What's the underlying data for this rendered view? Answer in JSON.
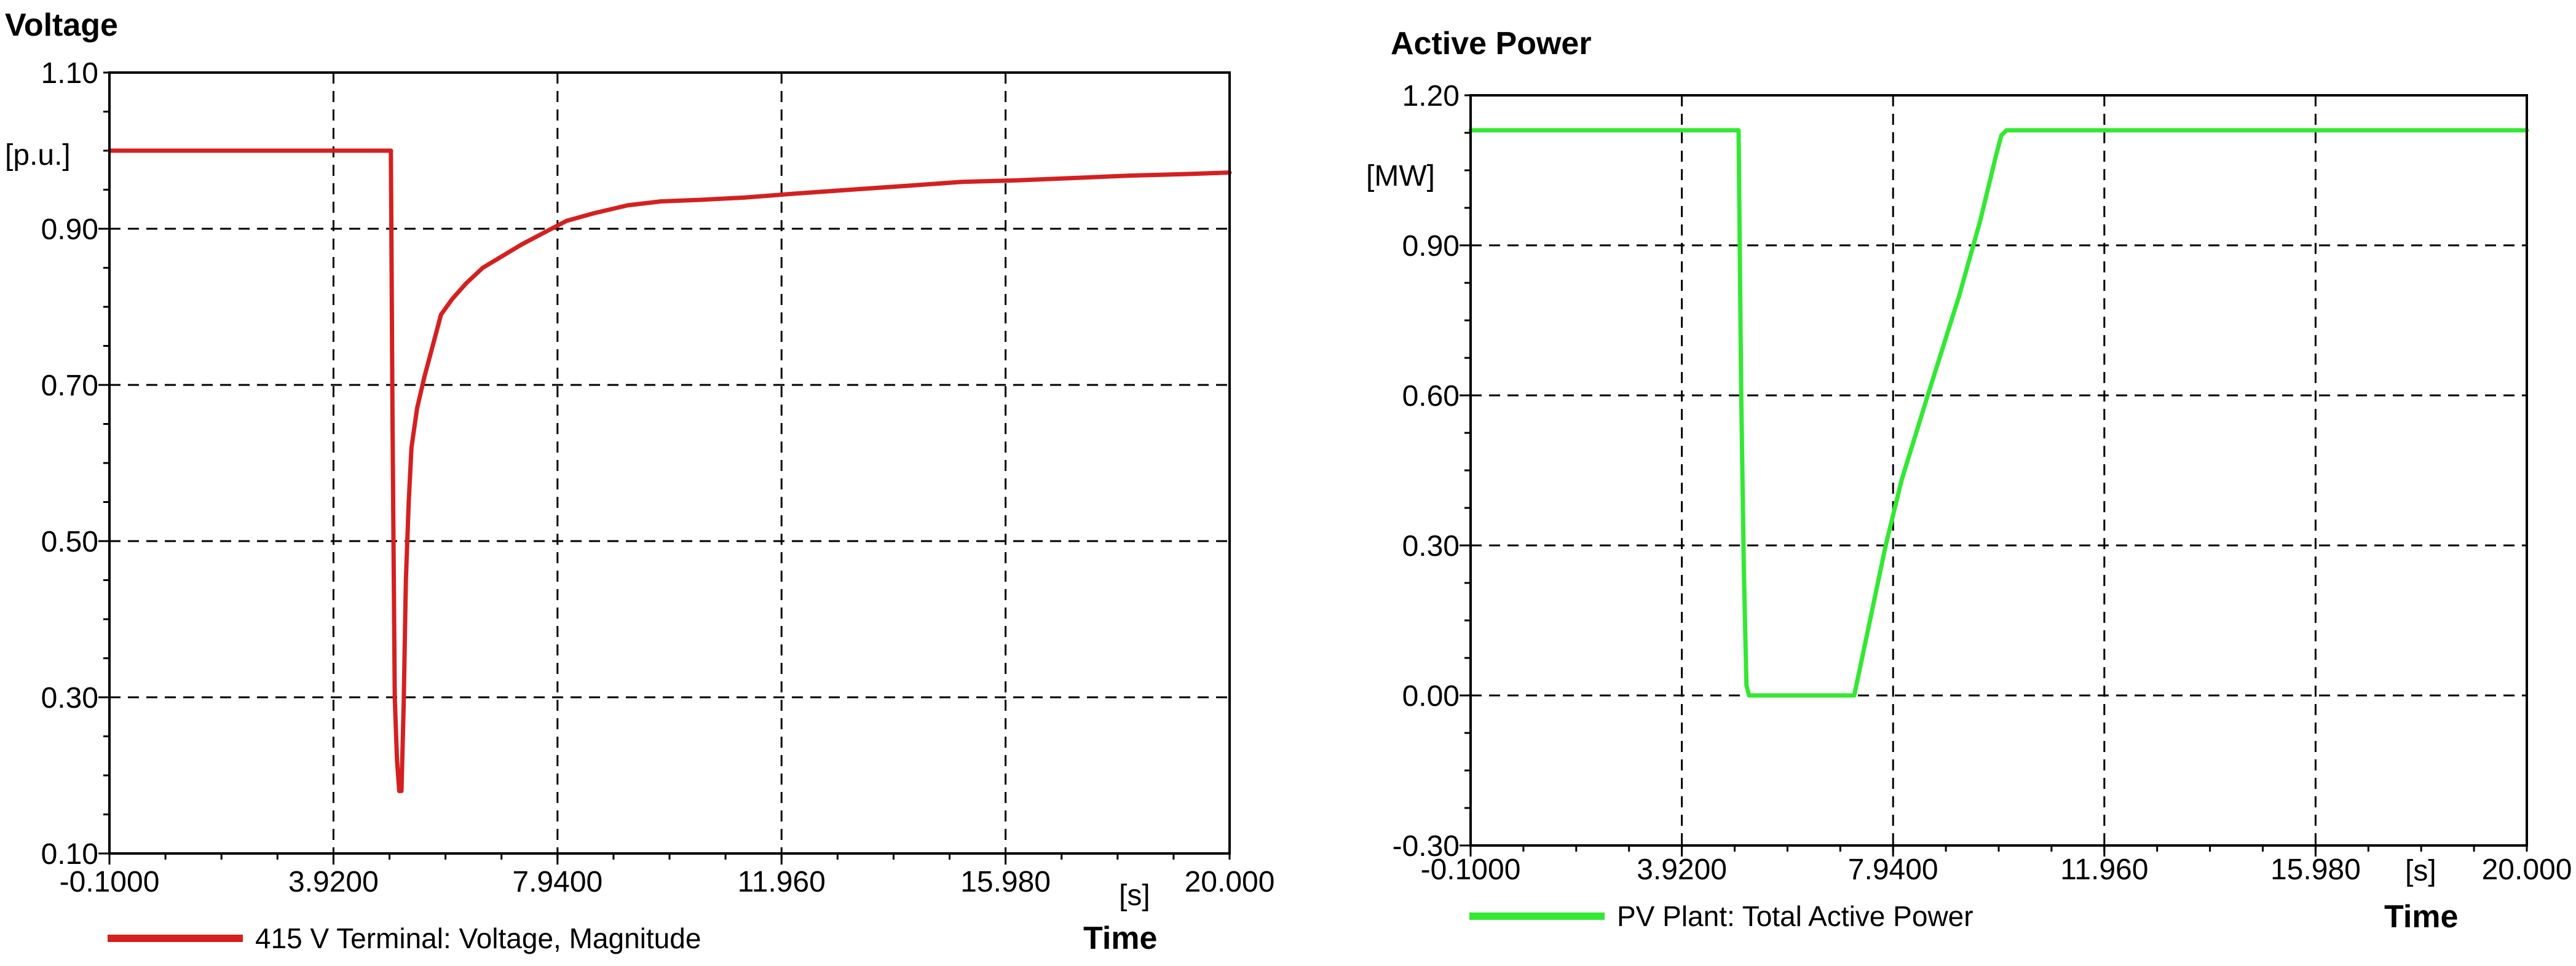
{
  "chart_data": [
    {
      "type": "line",
      "title": "Voltage",
      "ylabel": "[p.u.]",
      "xunit": "[s]",
      "xlabel": "Time",
      "xlim": [
        -0.1,
        20.0
      ],
      "ylim": [
        0.1,
        1.1
      ],
      "x_ticks": [
        -0.1,
        3.92,
        7.94,
        11.96,
        15.98,
        20.0
      ],
      "x_tick_labels": [
        "-0.1000",
        "3.9200",
        "7.9400",
        "11.960",
        "15.980",
        "20.000"
      ],
      "y_ticks": [
        0.1,
        0.3,
        0.5,
        0.7,
        0.9,
        1.1
      ],
      "y_tick_labels": [
        "0.10",
        "0.30",
        "0.50",
        "0.70",
        "0.90",
        "1.10"
      ],
      "grid": true,
      "series": [
        {
          "name": "415 V Terminal: Voltage, Magnitude",
          "color": "#d42020",
          "x": [
            -0.1,
            4.95,
            4.98,
            5.02,
            5.06,
            5.1,
            5.14,
            5.18,
            5.22,
            5.27,
            5.32,
            5.42,
            5.55,
            5.7,
            5.85,
            6.05,
            6.3,
            6.6,
            6.95,
            7.3,
            7.7,
            8.1,
            8.6,
            9.2,
            9.8,
            10.5,
            11.3,
            12.2,
            13.2,
            14.2,
            15.2,
            16.2,
            17.2,
            18.2,
            19.2,
            20.0
          ],
          "y": [
            1.0,
            1.0,
            0.65,
            0.3,
            0.22,
            0.18,
            0.18,
            0.29,
            0.45,
            0.55,
            0.62,
            0.67,
            0.71,
            0.75,
            0.79,
            0.81,
            0.83,
            0.85,
            0.865,
            0.88,
            0.895,
            0.91,
            0.92,
            0.93,
            0.935,
            0.937,
            0.94,
            0.945,
            0.95,
            0.955,
            0.96,
            0.962,
            0.965,
            0.968,
            0.97,
            0.972
          ]
        }
      ]
    },
    {
      "type": "line",
      "title": "Active Power",
      "ylabel": "[MW]",
      "xunit": "[s]",
      "xlabel": "Time",
      "xlim": [
        -0.1,
        20.0
      ],
      "ylim": [
        -0.3,
        1.2
      ],
      "x_ticks": [
        -0.1,
        3.92,
        7.94,
        11.96,
        15.98,
        20.0
      ],
      "x_tick_labels": [
        "-0.1000",
        "3.9200",
        "7.9400",
        "11.960",
        "15.980",
        "20.000"
      ],
      "y_ticks": [
        -0.3,
        0.0,
        0.3,
        0.6,
        0.9,
        1.2
      ],
      "y_tick_labels": [
        "-0.30",
        "0.00",
        "0.30",
        "0.60",
        "0.90",
        "1.20"
      ],
      "grid": true,
      "series": [
        {
          "name": "PV Plant: Total Active Power",
          "color": "#33e833",
          "x": [
            -0.1,
            5.0,
            5.05,
            5.1,
            5.15,
            5.2,
            7.2,
            7.5,
            7.8,
            8.1,
            8.6,
            9.2,
            9.6,
            9.9,
            10.0,
            10.1,
            20.0
          ],
          "y": [
            1.13,
            1.13,
            0.6,
            0.25,
            0.02,
            0.0,
            0.0,
            0.15,
            0.3,
            0.43,
            0.6,
            0.8,
            0.95,
            1.08,
            1.12,
            1.13,
            1.13
          ]
        }
      ]
    }
  ]
}
